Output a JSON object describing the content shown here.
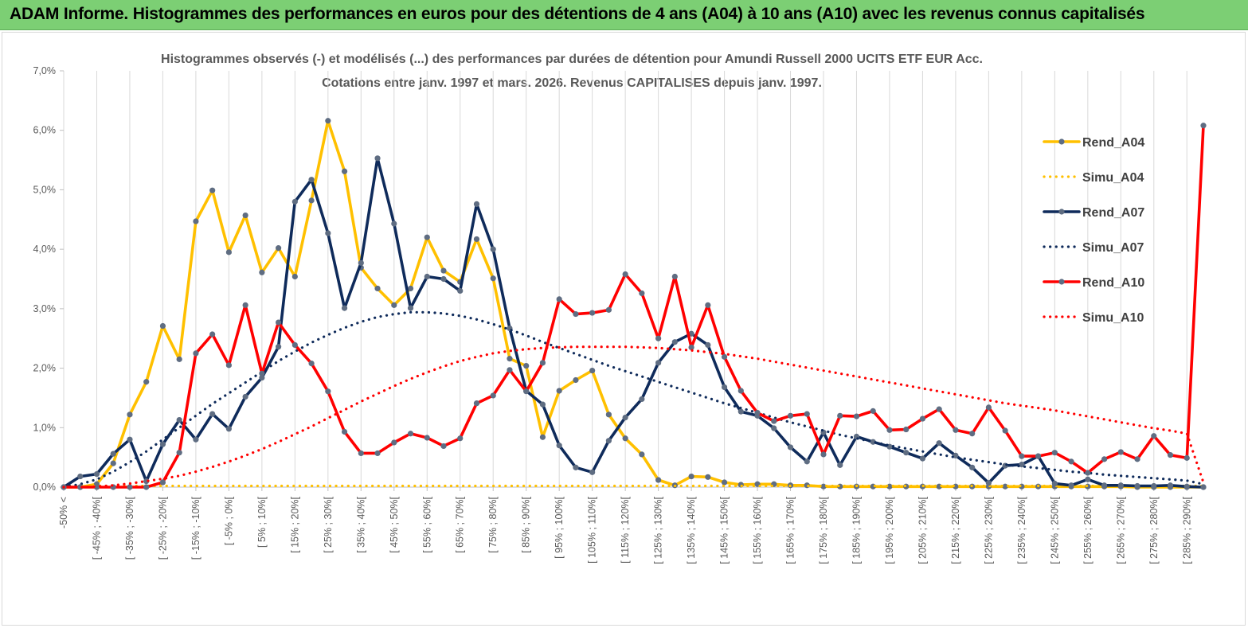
{
  "header": {
    "title": "ADAM Informe. Histogrammes des performances en euros pour des détentions de 4 ans (A04) à 10 ans (A10) avec les revenus connus capitalisés"
  },
  "chart_data": {
    "type": "line",
    "title": "Histogrammes observés (-) et modélisés (...) des performances par durées de détention pour Amundi Russell 2000 UCITS ETF EUR Acc.",
    "subtitle": "Cotations entre janv. 1997 et mars. 2026. Revenus CAPITALISES depuis janv. 1997.",
    "xlabel": "",
    "ylabel": "",
    "ylim": [
      0,
      7
    ],
    "y_ticks": [
      "0,0%",
      "1,0%",
      "2,0%",
      "3,0%",
      "4,0%",
      "5,0%",
      "6,0%",
      "7,0%"
    ],
    "grid": "vertical",
    "legend_position": "right",
    "x_tick_labels": [
      "-50% <",
      "[ -45% ; -40%[",
      "[ -35% ; -30%[",
      "[ -25% ; -20%[",
      "[ -15% ; -10%[",
      "[ -5% ; 0%[",
      "[ 5% ; 10%[",
      "[ 15% ; 20%[",
      "[ 25% ; 30%[",
      "[ 35% ; 40%[",
      "[ 45% ; 50%[",
      "[ 55% ; 60%[",
      "[ 65% ; 70%[",
      "[ 75% ; 80%[",
      "[ 85% ; 90%[",
      "[ 95% ; 100%[",
      "[ 105% ; 110%[",
      "[ 115% ; 120%[",
      "[ 125% ; 130%[",
      "[ 135% ; 140%[",
      "[ 145% ; 150%[",
      "[ 155% ; 160%[",
      "[ 165% ; 170%[",
      "[ 175% ; 180%[",
      "[ 185% ; 190%[",
      "[ 195% ; 200%[",
      "[ 205% ; 210%[",
      "[ 215% ; 220%[",
      "[ 225% ; 230%[",
      "[ 235% ; 240%[",
      "[ 245% ; 250%[",
      "[ 255% ; 260%[",
      "[ 265% ; 270%[",
      "[ 275% ; 280%[",
      "[ 285% ; 290%["
    ],
    "n_categories": 70,
    "series": [
      {
        "name": "Rend_A04",
        "color": "#ffc000",
        "style": "solid",
        "markers": true,
        "values": [
          0.0,
          0.0,
          0.05,
          0.4,
          1.22,
          1.77,
          2.71,
          2.15,
          4.47,
          4.99,
          3.95,
          4.57,
          3.61,
          4.02,
          3.54,
          4.82,
          6.16,
          5.31,
          3.69,
          3.34,
          3.06,
          3.34,
          4.2,
          3.64,
          3.45,
          4.17,
          3.51,
          2.16,
          2.04,
          0.84,
          1.62,
          1.8,
          1.96,
          1.22,
          0.82,
          0.55,
          0.12,
          0.03,
          0.18,
          0.17,
          0.08,
          0.04,
          0.05,
          0.05,
          0.03,
          0.03,
          0.01,
          0.01,
          0.01,
          0.01,
          0.01,
          0.01,
          0.01,
          0.01,
          0.01,
          0.01,
          0.01,
          0.01,
          0.01,
          0.01,
          0.01,
          0.01,
          0.01,
          0.01,
          0.01,
          0.0,
          0.0,
          0.0,
          0.0,
          0.0
        ]
      },
      {
        "name": "Simu_A04",
        "color": "#ffc000",
        "style": "dotted",
        "markers": false,
        "values": [
          0.02,
          0.02,
          0.02,
          0.02,
          0.02,
          0.02,
          0.02,
          0.02,
          0.02,
          0.02,
          0.02,
          0.02,
          0.02,
          0.02,
          0.02,
          0.02,
          0.02,
          0.02,
          0.02,
          0.02,
          0.02,
          0.02,
          0.02,
          0.02,
          0.02,
          0.02,
          0.02,
          0.02,
          0.02,
          0.02,
          0.02,
          0.02,
          0.02,
          0.02,
          0.02,
          0.02,
          0.02,
          0.02,
          0.02,
          0.02,
          0.02,
          0.02,
          0.02,
          0.02,
          0.02,
          0.02,
          0.02,
          0.02,
          0.02,
          0.02,
          0.02,
          0.02,
          0.02,
          0.02,
          0.02,
          0.02,
          0.02,
          0.02,
          0.02,
          0.02,
          0.02,
          0.02,
          0.02,
          0.02,
          0.02,
          0.02,
          0.02,
          0.02,
          0.02,
          0.02
        ]
      },
      {
        "name": "Rend_A07",
        "color": "#0f2b5b",
        "style": "solid",
        "markers": true,
        "values": [
          0.0,
          0.18,
          0.22,
          0.56,
          0.8,
          0.1,
          0.72,
          1.13,
          0.8,
          1.23,
          0.98,
          1.52,
          1.84,
          2.36,
          4.8,
          5.17,
          4.27,
          3.01,
          3.77,
          5.53,
          4.43,
          3.01,
          3.54,
          3.5,
          3.3,
          4.76,
          4.0,
          2.67,
          1.62,
          1.39,
          0.7,
          0.33,
          0.25,
          0.78,
          1.17,
          1.48,
          2.09,
          2.44,
          2.58,
          2.39,
          1.68,
          1.27,
          1.2,
          0.99,
          0.67,
          0.43,
          0.92,
          0.37,
          0.85,
          0.76,
          0.68,
          0.58,
          0.48,
          0.74,
          0.53,
          0.33,
          0.07,
          0.36,
          0.38,
          0.52,
          0.06,
          0.03,
          0.13,
          0.03,
          0.03,
          0.02,
          0.02,
          0.03,
          0.01,
          0.0
        ]
      },
      {
        "name": "Simu_A07",
        "color": "#0f2b5b",
        "style": "dotted",
        "markers": false,
        "values": [
          0.0,
          0.05,
          0.13,
          0.26,
          0.42,
          0.6,
          0.8,
          1.0,
          1.2,
          1.4,
          1.58,
          1.76,
          1.94,
          2.12,
          2.28,
          2.43,
          2.56,
          2.68,
          2.78,
          2.86,
          2.91,
          2.94,
          2.94,
          2.92,
          2.88,
          2.82,
          2.74,
          2.65,
          2.55,
          2.44,
          2.34,
          2.24,
          2.14,
          2.04,
          1.95,
          1.86,
          1.77,
          1.68,
          1.59,
          1.5,
          1.41,
          1.33,
          1.25,
          1.17,
          1.09,
          1.02,
          0.95,
          0.88,
          0.82,
          0.76,
          0.7,
          0.65,
          0.6,
          0.55,
          0.5,
          0.46,
          0.42,
          0.38,
          0.35,
          0.32,
          0.29,
          0.26,
          0.24,
          0.21,
          0.19,
          0.17,
          0.15,
          0.13,
          0.11,
          0.05
        ]
      },
      {
        "name": "Rend_A10",
        "color": "#ff0000",
        "style": "solid",
        "markers": true,
        "values": [
          0.0,
          0.0,
          0.0,
          0.0,
          0.0,
          0.0,
          0.08,
          0.58,
          2.25,
          2.57,
          2.05,
          3.06,
          1.91,
          2.77,
          2.39,
          2.08,
          1.61,
          0.93,
          0.57,
          0.57,
          0.75,
          0.9,
          0.83,
          0.69,
          0.82,
          1.41,
          1.54,
          1.97,
          1.61,
          2.09,
          3.16,
          2.91,
          2.93,
          2.98,
          3.58,
          3.26,
          2.5,
          3.54,
          2.35,
          3.06,
          2.19,
          1.62,
          1.25,
          1.11,
          1.2,
          1.23,
          0.55,
          1.2,
          1.19,
          1.28,
          0.96,
          0.97,
          1.15,
          1.31,
          0.96,
          0.9,
          1.34,
          0.95,
          0.52,
          0.52,
          0.58,
          0.43,
          0.24,
          0.47,
          0.59,
          0.47,
          0.86,
          0.54,
          0.49,
          6.08
        ]
      },
      {
        "name": "Simu_A10",
        "color": "#ff0000",
        "style": "dotted",
        "markers": false,
        "values": [
          0.0,
          0.0,
          0.01,
          0.03,
          0.06,
          0.1,
          0.14,
          0.19,
          0.26,
          0.34,
          0.43,
          0.53,
          0.64,
          0.76,
          0.89,
          1.02,
          1.16,
          1.3,
          1.44,
          1.57,
          1.7,
          1.82,
          1.93,
          2.03,
          2.12,
          2.19,
          2.25,
          2.29,
          2.32,
          2.34,
          2.35,
          2.36,
          2.36,
          2.36,
          2.36,
          2.35,
          2.34,
          2.32,
          2.3,
          2.27,
          2.24,
          2.2,
          2.16,
          2.11,
          2.06,
          2.01,
          1.96,
          1.91,
          1.86,
          1.81,
          1.76,
          1.71,
          1.66,
          1.61,
          1.56,
          1.51,
          1.46,
          1.41,
          1.37,
          1.33,
          1.29,
          1.24,
          1.19,
          1.14,
          1.09,
          1.04,
          0.99,
          0.95,
          0.9,
          0.08
        ]
      }
    ]
  }
}
